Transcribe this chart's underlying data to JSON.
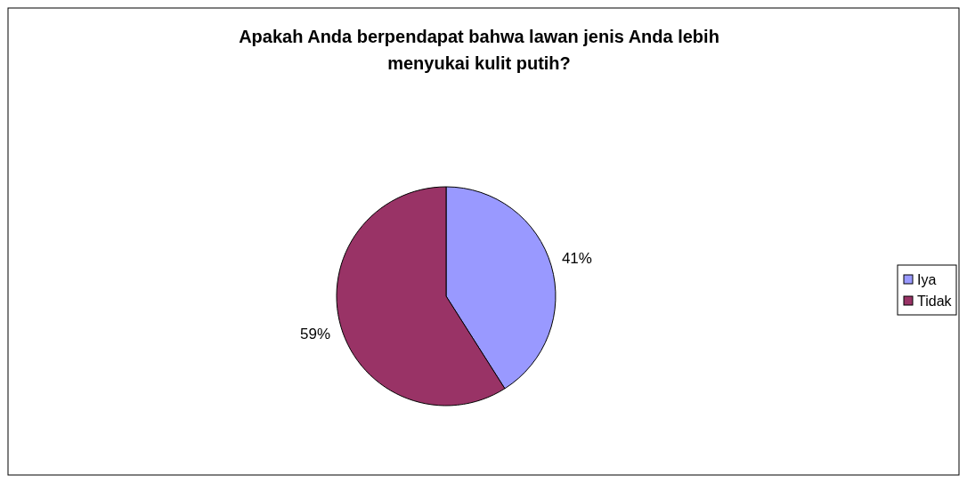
{
  "chart_data": {
    "type": "pie",
    "title": "Apakah Anda berpendapat bahwa lawan jenis Anda lebih menyukai kulit putih?",
    "categories": [
      "Iya",
      "Tidak"
    ],
    "values": [
      41,
      59
    ],
    "value_labels": [
      "41%",
      "59%"
    ],
    "colors": [
      "#9999ff",
      "#993366"
    ],
    "legend": "right"
  }
}
